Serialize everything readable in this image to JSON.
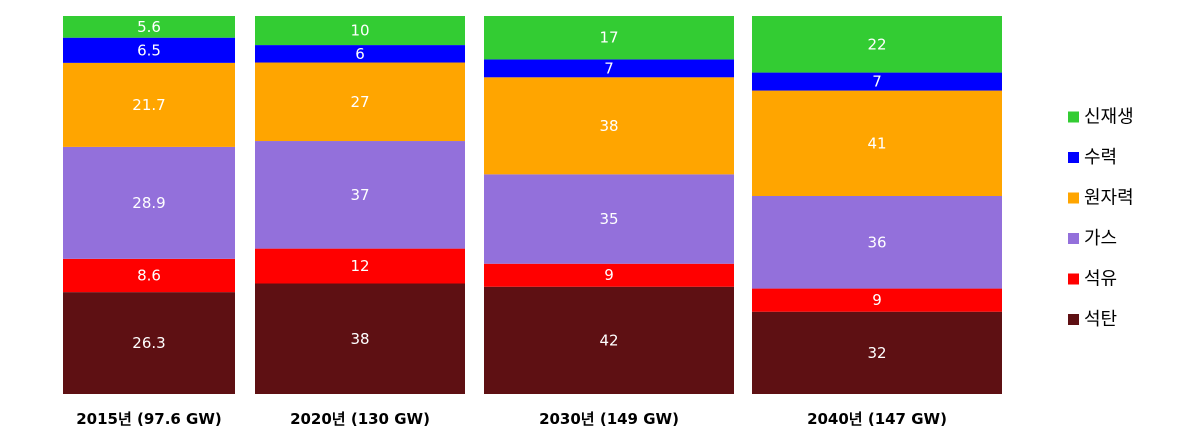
{
  "chart_data": {
    "type": "bar",
    "stacked": true,
    "normalized": true,
    "categories": [
      "2015년  (97.6 GW)",
      "2020년 (130 GW)",
      "2030년 (149 GW)",
      "2040년 (147 GW)"
    ],
    "series": [
      {
        "name": "석탄",
        "color": "#5e1013",
        "values": [
          26.3,
          38,
          42,
          32
        ],
        "labels": [
          "26.3",
          "38",
          "42",
          "32"
        ]
      },
      {
        "name": "석유",
        "color": "#ff0000",
        "values": [
          8.6,
          12,
          9,
          9
        ],
        "labels": [
          "8.6",
          "12",
          "9",
          "9"
        ]
      },
      {
        "name": "가스",
        "color": "#9370db",
        "values": [
          28.9,
          37,
          35,
          36
        ],
        "labels": [
          "28.9",
          "37",
          "35",
          "36"
        ]
      },
      {
        "name": "원자력",
        "color": "#ffa500",
        "values": [
          21.7,
          27,
          38,
          41
        ],
        "labels": [
          "21.7",
          "27",
          "38",
          "41"
        ]
      },
      {
        "name": "수력",
        "color": "#0000ff",
        "values": [
          6.5,
          6,
          7,
          7
        ],
        "labels": [
          "6.5",
          "6",
          "7",
          "7"
        ]
      },
      {
        "name": "신재생",
        "color": "#33cc33",
        "values": [
          5.6,
          10,
          17,
          22
        ],
        "labels": [
          "5.6",
          "10",
          "17",
          "22"
        ]
      }
    ],
    "legend_order": [
      "신재생",
      "수력",
      "원자력",
      "가스",
      "석유",
      "석탄"
    ],
    "legend_position": "right",
    "grid": false
  }
}
